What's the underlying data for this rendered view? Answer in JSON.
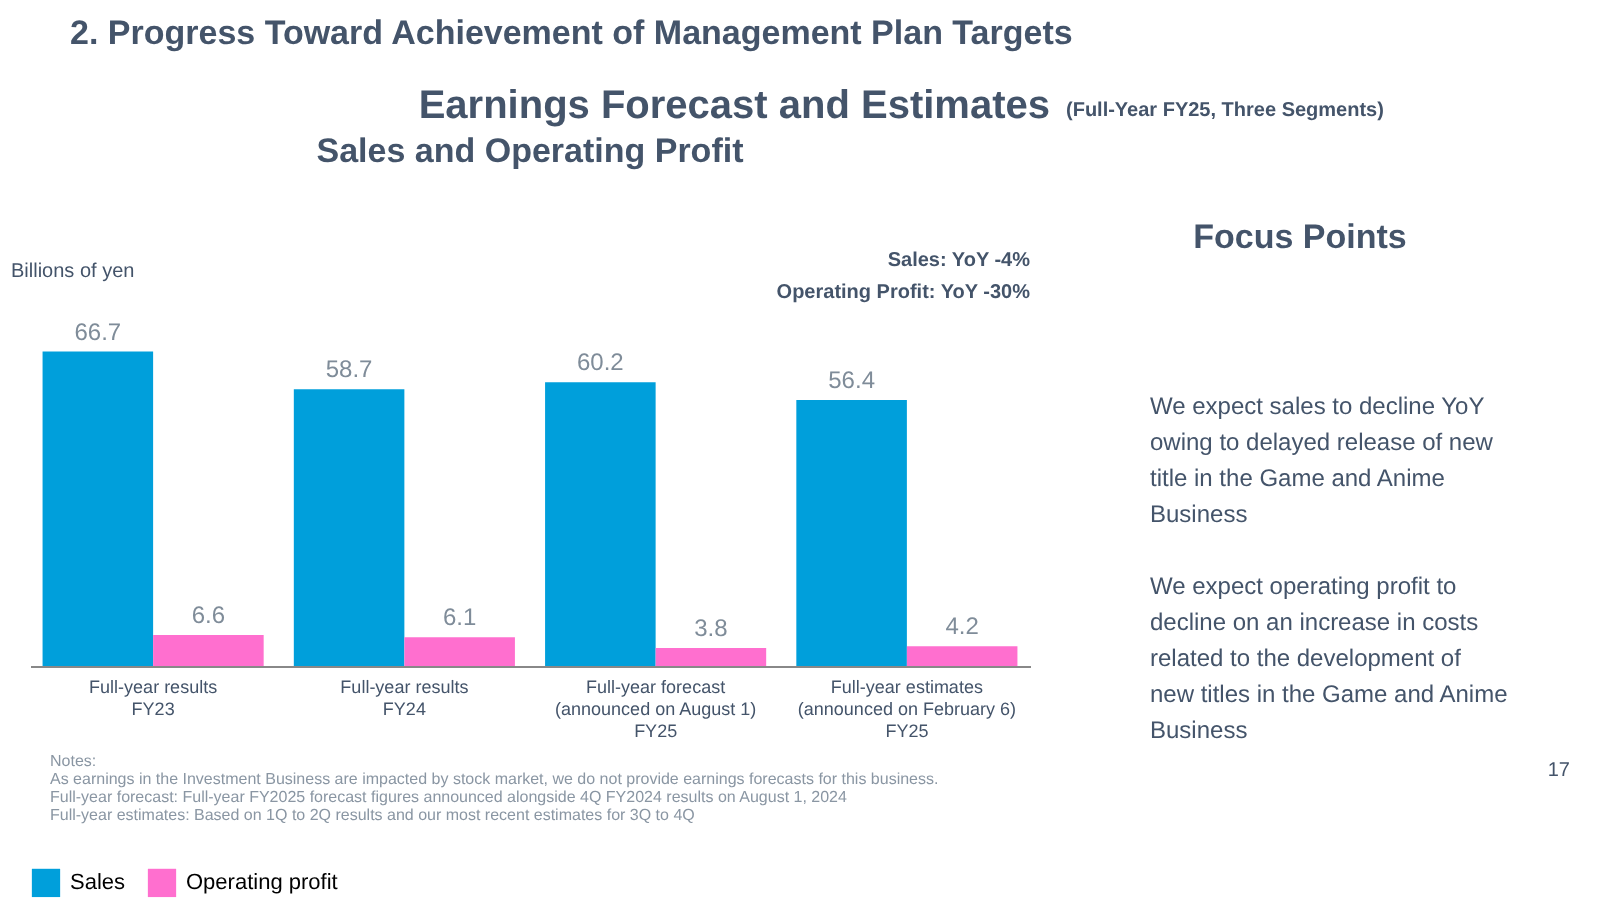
{
  "chart_data": [
    {
      "type": "bar",
      "title": "Sales and Operating Profit",
      "ylabel": "Billions of yen",
      "categories": [
        "Full-year results\nFY23",
        "Full-year results\nFY24",
        "Full-year forecast\n(announced on August 1)\nFY25",
        "Full-year estimates\n(announced on February 6)\nFY25"
      ],
      "series": [
        {
          "name": "Sales",
          "color": "#009fdb",
          "values": [
            66.7,
            58.7,
            60.2,
            56.4
          ]
        },
        {
          "name": "Operating profit",
          "color": "#ff6fcf",
          "values": [
            6.6,
            6.1,
            3.8,
            4.2
          ]
        }
      ],
      "data_labels": true,
      "legend": "bottom",
      "grid": false,
      "annotations": [
        "2. Progress Toward Achievement of Management Plan Targets",
        "Earnings Forecast and Estimates",
        "(Full-Year FY25, Three Segments)",
        "Sales: YoY -4%",
        "Operating Profit: YoY -30%",
        "Notes:",
        "As earnings in the Investment Business are impacted by stock market, we do not provide earnings forecasts for this business.",
        "Full-year forecast: Full-year FY2025 forecast figures announced alongside 4Q FY2024 results on August 1, 2024",
        "Full-year estimates: Based on 1Q to 2Q results and our most recent estimates for 3Q to 4Q",
        "17"
      ]
    },
    {
      "type": "other",
      "title": "Focus Points",
      "annotations": [
        "We expect sales to decline YoY owing to delayed release of new title in the Game and Anime Business",
        "We expect operating profit to decline on an increase in costs related to the development of new titles in the Game and Anime Business"
      ]
    }
  ]
}
